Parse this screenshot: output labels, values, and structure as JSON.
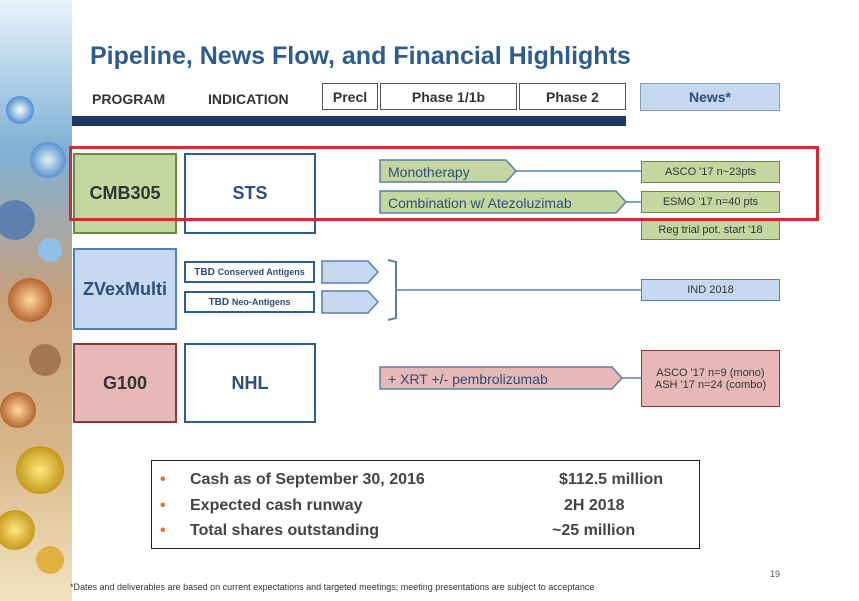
{
  "title": "Pipeline, News Flow, and Financial Highlights",
  "headers": {
    "program": "PROGRAM",
    "indication": "INDICATION",
    "phases": [
      "Precl",
      "Phase 1/1b",
      "Phase 2"
    ],
    "news": "News*"
  },
  "programs": {
    "cmb305": {
      "name": "CMB305",
      "indication": "STS",
      "arms": [
        "Monotherapy",
        "Combination w/ Atezoluzimab"
      ],
      "news": [
        "ASCO '17 n~23pts",
        "ESMO '17 n=40 pts",
        "Reg trial pot. start '18"
      ]
    },
    "zvex": {
      "name": "ZVexMulti",
      "indications": [
        {
          "prefix": "TBD",
          "name": "Conserved Antigens"
        },
        {
          "prefix": "TBD",
          "name": "Neo-Antigens"
        }
      ],
      "news": "IND 2018"
    },
    "g100": {
      "name": "G100",
      "indication": "NHL",
      "arm": "+ XRT +/- pembrolizumab",
      "news": [
        "ASCO '17 n=9 (mono)",
        "ASH '17 n=24 (combo)"
      ]
    }
  },
  "financials": [
    {
      "label": "Cash as of September 30, 2016",
      "value": "$112.5 million"
    },
    {
      "label": "Expected cash runway",
      "value": "2H 2018"
    },
    {
      "label": "Total shares outstanding",
      "value": "~25 million"
    }
  ],
  "footnote": "*Dates and deliverables are based on current expectations and targeted meetings; meeting presentations are subject to acceptance",
  "page_number": "19",
  "colors": {
    "title": "#2d5c8f",
    "cmb305": "#c5d7a0",
    "zvex": "#c6d9f0",
    "g100": "#e6b9b8",
    "highlight": "#d42a2f",
    "bar": "#1f3a60",
    "bullet": "#e26f27"
  }
}
